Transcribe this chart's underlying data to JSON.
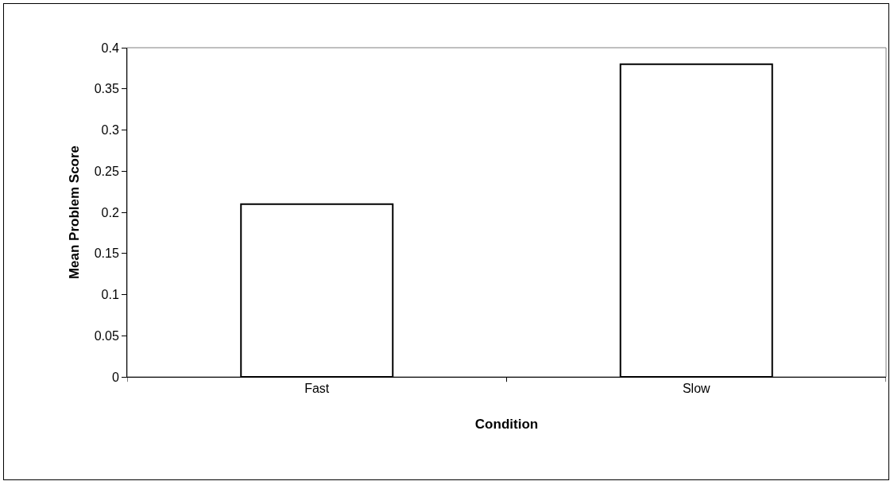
{
  "chart_data": {
    "type": "bar",
    "xlabel": "Condition",
    "ylabel": "Mean Problem Score",
    "categories": [
      "Fast",
      "Slow"
    ],
    "values": [
      0.21,
      0.38
    ],
    "color": "#ffffff",
    "ylim": [
      0,
      0.4
    ],
    "yticks": [
      0,
      0.05,
      0.1,
      0.15,
      0.2,
      0.25,
      0.3,
      0.35,
      0.4
    ],
    "grid": false,
    "legend": false
  }
}
